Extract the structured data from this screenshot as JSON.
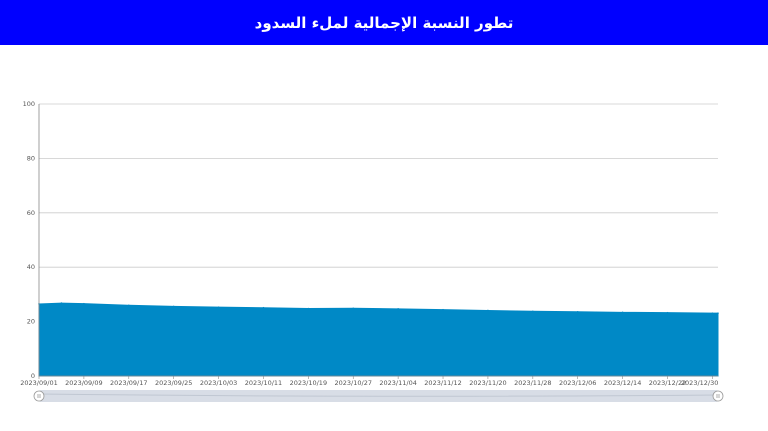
{
  "header": {
    "title": "تطور النسبة الإجمالية لملء السدود",
    "background": "#0000ff"
  },
  "chart_data": {
    "type": "area",
    "title": "تطور النسبة الإجمالية لملء السدود",
    "xlabel": "",
    "ylabel": "",
    "ylim": [
      0,
      100
    ],
    "y_ticks": [
      0,
      20,
      40,
      60,
      80,
      100
    ],
    "x_tick_labels": [
      "2023/09/01",
      "2023/09/09",
      "2023/09/17",
      "2023/09/25",
      "2023/10/03",
      "2023/10/11",
      "2023/10/19",
      "2023/10/27",
      "2023/11/04",
      "2023/11/12",
      "2023/11/20",
      "2023/11/28",
      "2023/12/06",
      "2023/12/14",
      "2023/12/22",
      "2023/12/30"
    ],
    "x": [
      "2023/09/01",
      "2023/09/05",
      "2023/09/09",
      "2023/09/17",
      "2023/09/25",
      "2023/10/03",
      "2023/10/11",
      "2023/10/19",
      "2023/10/27",
      "2023/11/04",
      "2023/11/12",
      "2023/11/20",
      "2023/11/28",
      "2023/12/06",
      "2023/12/14",
      "2023/12/22",
      "2023/12/30",
      "2023/12/31"
    ],
    "values": [
      26.5,
      26.8,
      26.6,
      26.0,
      25.6,
      25.3,
      25.1,
      24.8,
      24.9,
      24.7,
      24.4,
      24.1,
      23.8,
      23.6,
      23.4,
      23.3,
      23.1,
      23.1
    ],
    "grid": true,
    "fill_color": "#0089c6",
    "grid_color": "#cccccc",
    "navigator": true
  }
}
